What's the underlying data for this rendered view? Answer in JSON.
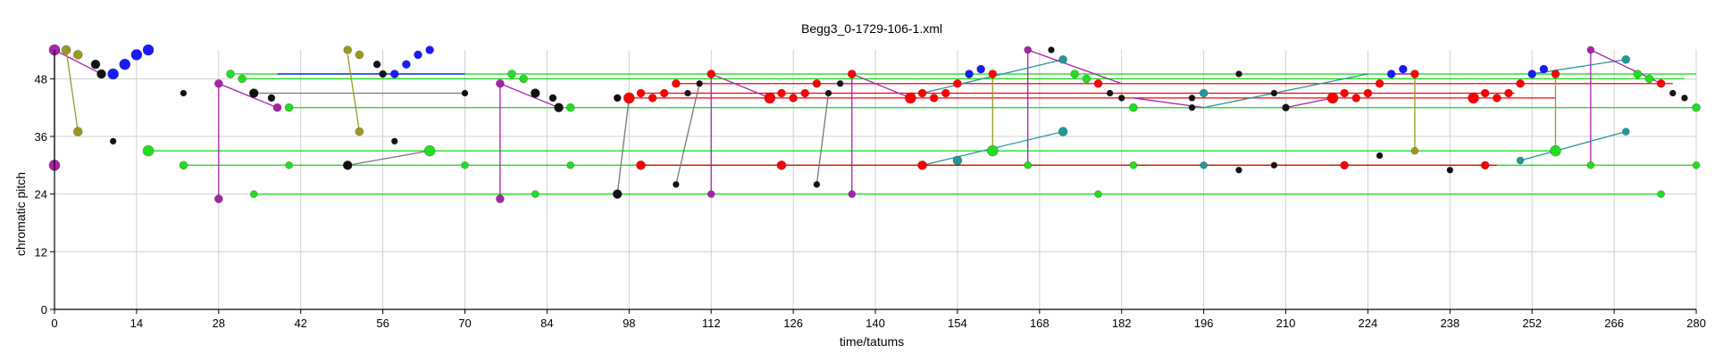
{
  "chart_data": {
    "type": "scatter",
    "title": "Begg3_0-1729-106-1.xml",
    "xlabel": "time/tatums",
    "ylabel": "chromatic pitch",
    "xlim": [
      0,
      280
    ],
    "ylim": [
      0,
      54
    ],
    "xticks": [
      0,
      14,
      28,
      42,
      56,
      70,
      84,
      98,
      112,
      126,
      140,
      154,
      168,
      182,
      196,
      210,
      224,
      238,
      252,
      266,
      280
    ],
    "yticks": [
      0,
      12,
      24,
      36,
      48
    ],
    "grid": true,
    "colors": {
      "green": "#22dd22",
      "red": "#ff0000",
      "blue": "#1a1aff",
      "purple": "#aa22aa",
      "olive": "#999922",
      "teal": "#229999",
      "black": "#111111",
      "gray": "#777777"
    },
    "lines": [
      {
        "color": "green",
        "x": [
          30,
          280
        ],
        "y": [
          49,
          49
        ]
      },
      {
        "color": "green",
        "x": [
          32,
          278
        ],
        "y": [
          48,
          48
        ]
      },
      {
        "color": "green",
        "x": [
          40,
          280
        ],
        "y": [
          42,
          42
        ]
      },
      {
        "color": "green",
        "x": [
          16,
          256
        ],
        "y": [
          33,
          33
        ]
      },
      {
        "color": "green",
        "x": [
          22,
          280
        ],
        "y": [
          30,
          30
        ]
      },
      {
        "color": "green",
        "x": [
          34,
          274
        ],
        "y": [
          24,
          24
        ]
      },
      {
        "color": "red",
        "x": [
          106,
          276
        ],
        "y": [
          47,
          47
        ]
      },
      {
        "color": "red",
        "x": [
          98,
          256
        ],
        "y": [
          44,
          44
        ]
      },
      {
        "color": "red",
        "x": [
          100,
          249
        ],
        "y": [
          45,
          45
        ]
      },
      {
        "color": "red",
        "x": [
          100,
          246
        ],
        "y": [
          30,
          30
        ]
      },
      {
        "color": "gray",
        "x": [
          34,
          70
        ],
        "y": [
          45,
          45
        ]
      },
      {
        "color": "gray",
        "x": [
          50,
          64
        ],
        "y": [
          30,
          33
        ]
      },
      {
        "color": "blue",
        "x": [
          38,
          70
        ],
        "y": [
          49,
          49
        ]
      },
      {
        "color": "purple",
        "x": [
          0,
          0
        ],
        "y": [
          30,
          54
        ]
      },
      {
        "color": "purple",
        "x": [
          28,
          28
        ],
        "y": [
          23,
          47
        ]
      },
      {
        "color": "purple",
        "x": [
          76,
          76
        ],
        "y": [
          23,
          47
        ]
      },
      {
        "color": "purple",
        "x": [
          112,
          112
        ],
        "y": [
          24,
          49
        ]
      },
      {
        "color": "purple",
        "x": [
          136,
          136
        ],
        "y": [
          24,
          49
        ]
      },
      {
        "color": "purple",
        "x": [
          166,
          166
        ],
        "y": [
          30,
          54
        ]
      },
      {
        "color": "purple",
        "x": [
          262,
          262
        ],
        "y": [
          30,
          54
        ]
      },
      {
        "color": "purple",
        "x": [
          28,
          38
        ],
        "y": [
          47,
          42
        ]
      },
      {
        "color": "purple",
        "x": [
          76,
          86
        ],
        "y": [
          47,
          42
        ]
      },
      {
        "color": "purple",
        "x": [
          0,
          8
        ],
        "y": [
          54,
          49
        ]
      },
      {
        "color": "olive",
        "x": [
          2,
          4
        ],
        "y": [
          54,
          37
        ]
      },
      {
        "color": "olive",
        "x": [
          50,
          52
        ],
        "y": [
          53,
          37
        ]
      },
      {
        "color": "olive",
        "x": [
          160,
          160
        ],
        "y": [
          33,
          49
        ]
      },
      {
        "color": "olive",
        "x": [
          232,
          232
        ],
        "y": [
          33,
          49
        ]
      },
      {
        "color": "olive",
        "x": [
          256,
          256
        ],
        "y": [
          33,
          49
        ]
      },
      {
        "color": "gray",
        "x": [
          96,
          98
        ],
        "y": [
          24,
          44
        ]
      },
      {
        "color": "gray",
        "x": [
          106,
          110
        ],
        "y": [
          26,
          47
        ]
      },
      {
        "color": "gray",
        "x": [
          130,
          132
        ],
        "y": [
          26,
          45
        ]
      },
      {
        "color": "teal",
        "x": [
          148,
          172
        ],
        "y": [
          30,
          37
        ]
      },
      {
        "color": "teal",
        "x": [
          148,
          172
        ],
        "y": [
          45,
          52
        ]
      },
      {
        "color": "teal",
        "x": [
          196,
          224
        ],
        "y": [
          42,
          49
        ]
      },
      {
        "color": "teal",
        "x": [
          250,
          268
        ],
        "y": [
          31,
          37
        ]
      },
      {
        "color": "teal",
        "x": [
          252,
          268
        ],
        "y": [
          49,
          52
        ]
      },
      {
        "color": "purple",
        "x": [
          112,
          122
        ],
        "y": [
          49,
          44
        ]
      },
      {
        "color": "purple",
        "x": [
          136,
          146
        ],
        "y": [
          49,
          44
        ]
      },
      {
        "color": "purple",
        "x": [
          166,
          182
        ],
        "y": [
          54,
          47
        ]
      },
      {
        "color": "purple",
        "x": [
          262,
          274
        ],
        "y": [
          54,
          47
        ]
      },
      {
        "color": "purple",
        "x": [
          184,
          196
        ],
        "y": [
          44,
          42
        ]
      },
      {
        "color": "purple",
        "x": [
          210,
          218
        ],
        "y": [
          42,
          44
        ]
      },
      {
        "color": "purple",
        "x": [
          228,
          232
        ],
        "y": [
          49,
          49
        ]
      }
    ],
    "points": [
      {
        "c": "purple",
        "x": 0,
        "y": 54,
        "r": 6
      },
      {
        "c": "olive",
        "x": 2,
        "y": 54,
        "r": 5
      },
      {
        "c": "olive",
        "x": 4,
        "y": 53,
        "r": 5
      },
      {
        "c": "olive",
        "x": 4,
        "y": 37,
        "r": 5
      },
      {
        "c": "purple",
        "x": 0,
        "y": 30,
        "r": 6
      },
      {
        "c": "black",
        "x": 7,
        "y": 51,
        "r": 5
      },
      {
        "c": "black",
        "x": 8,
        "y": 49,
        "r": 5
      },
      {
        "c": "blue",
        "x": 10,
        "y": 49,
        "r": 6
      },
      {
        "c": "blue",
        "x": 12,
        "y": 51,
        "r": 6
      },
      {
        "c": "blue",
        "x": 14,
        "y": 53,
        "r": 6
      },
      {
        "c": "blue",
        "x": 16,
        "y": 54,
        "r": 6
      },
      {
        "c": "black",
        "x": 10,
        "y": 35,
        "r": 3.5
      },
      {
        "c": "black",
        "x": 22,
        "y": 45,
        "r": 3.5
      },
      {
        "c": "green",
        "x": 16,
        "y": 33,
        "r": 6
      },
      {
        "c": "green",
        "x": 22,
        "y": 30,
        "r": 4.5
      },
      {
        "c": "purple",
        "x": 28,
        "y": 47,
        "r": 4.5
      },
      {
        "c": "purple",
        "x": 28,
        "y": 23,
        "r": 4.5
      },
      {
        "c": "green",
        "x": 30,
        "y": 49,
        "r": 4.5
      },
      {
        "c": "green",
        "x": 32,
        "y": 48,
        "r": 4.5
      },
      {
        "c": "black",
        "x": 34,
        "y": 45,
        "r": 5
      },
      {
        "c": "green",
        "x": 34,
        "y": 24,
        "r": 4
      },
      {
        "c": "black",
        "x": 37,
        "y": 44,
        "r": 4
      },
      {
        "c": "purple",
        "x": 38,
        "y": 42,
        "r": 4.5
      },
      {
        "c": "green",
        "x": 40,
        "y": 42,
        "r": 4.5
      },
      {
        "c": "green",
        "x": 40,
        "y": 30,
        "r": 4
      },
      {
        "c": "olive",
        "x": 50,
        "y": 54,
        "r": 4.5
      },
      {
        "c": "olive",
        "x": 52,
        "y": 53,
        "r": 4.5
      },
      {
        "c": "olive",
        "x": 52,
        "y": 37,
        "r": 4.5
      },
      {
        "c": "black",
        "x": 50,
        "y": 30,
        "r": 5
      },
      {
        "c": "black",
        "x": 55,
        "y": 51,
        "r": 4
      },
      {
        "c": "black",
        "x": 56,
        "y": 49,
        "r": 4
      },
      {
        "c": "blue",
        "x": 58,
        "y": 49,
        "r": 4.5
      },
      {
        "c": "blue",
        "x": 60,
        "y": 51,
        "r": 4.5
      },
      {
        "c": "blue",
        "x": 62,
        "y": 53,
        "r": 4.5
      },
      {
        "c": "blue",
        "x": 64,
        "y": 54,
        "r": 4.5
      },
      {
        "c": "black",
        "x": 58,
        "y": 35,
        "r": 3.5
      },
      {
        "c": "green",
        "x": 64,
        "y": 33,
        "r": 6
      },
      {
        "c": "black",
        "x": 70,
        "y": 45,
        "r": 3.5
      },
      {
        "c": "green",
        "x": 70,
        "y": 30,
        "r": 4
      },
      {
        "c": "purple",
        "x": 76,
        "y": 47,
        "r": 4.5
      },
      {
        "c": "purple",
        "x": 76,
        "y": 23,
        "r": 4.5
      },
      {
        "c": "green",
        "x": 78,
        "y": 49,
        "r": 4.5
      },
      {
        "c": "green",
        "x": 80,
        "y": 48,
        "r": 4.5
      },
      {
        "c": "black",
        "x": 82,
        "y": 45,
        "r": 5
      },
      {
        "c": "green",
        "x": 82,
        "y": 24,
        "r": 4
      },
      {
        "c": "black",
        "x": 85,
        "y": 44,
        "r": 4
      },
      {
        "c": "black",
        "x": 86,
        "y": 42,
        "r": 5
      },
      {
        "c": "green",
        "x": 88,
        "y": 42,
        "r": 4.5
      },
      {
        "c": "green",
        "x": 88,
        "y": 30,
        "r": 4
      },
      {
        "c": "black",
        "x": 96,
        "y": 44,
        "r": 4
      },
      {
        "c": "black",
        "x": 96,
        "y": 24,
        "r": 5
      },
      {
        "c": "red",
        "x": 98,
        "y": 44,
        "r": 6
      },
      {
        "c": "red",
        "x": 100,
        "y": 45,
        "r": 4.5
      },
      {
        "c": "red",
        "x": 100,
        "y": 30,
        "r": 5
      },
      {
        "c": "red",
        "x": 102,
        "y": 44,
        "r": 4.5
      },
      {
        "c": "red",
        "x": 104,
        "y": 45,
        "r": 4.5
      },
      {
        "c": "red",
        "x": 106,
        "y": 47,
        "r": 4.5
      },
      {
        "c": "black",
        "x": 106,
        "y": 26,
        "r": 3.5
      },
      {
        "c": "black",
        "x": 108,
        "y": 45,
        "r": 3.5
      },
      {
        "c": "black",
        "x": 110,
        "y": 47,
        "r": 3.5
      },
      {
        "c": "red",
        "x": 112,
        "y": 49,
        "r": 4.5
      },
      {
        "c": "purple",
        "x": 112,
        "y": 24,
        "r": 4
      },
      {
        "c": "red",
        "x": 122,
        "y": 44,
        "r": 6
      },
      {
        "c": "red",
        "x": 124,
        "y": 45,
        "r": 4.5
      },
      {
        "c": "red",
        "x": 124,
        "y": 30,
        "r": 5
      },
      {
        "c": "red",
        "x": 126,
        "y": 44,
        "r": 4.5
      },
      {
        "c": "red",
        "x": 128,
        "y": 45,
        "r": 4.5
      },
      {
        "c": "red",
        "x": 130,
        "y": 47,
        "r": 4.5
      },
      {
        "c": "black",
        "x": 130,
        "y": 26,
        "r": 3.5
      },
      {
        "c": "black",
        "x": 132,
        "y": 45,
        "r": 3.5
      },
      {
        "c": "black",
        "x": 134,
        "y": 47,
        "r": 3.5
      },
      {
        "c": "red",
        "x": 136,
        "y": 49,
        "r": 4.5
      },
      {
        "c": "purple",
        "x": 136,
        "y": 24,
        "r": 4
      },
      {
        "c": "red",
        "x": 146,
        "y": 44,
        "r": 6
      },
      {
        "c": "red",
        "x": 148,
        "y": 45,
        "r": 4.5
      },
      {
        "c": "red",
        "x": 148,
        "y": 30,
        "r": 5
      },
      {
        "c": "red",
        "x": 150,
        "y": 44,
        "r": 4.5
      },
      {
        "c": "red",
        "x": 152,
        "y": 45,
        "r": 4.5
      },
      {
        "c": "red",
        "x": 154,
        "y": 47,
        "r": 4.5
      },
      {
        "c": "teal",
        "x": 154,
        "y": 31,
        "r": 5
      },
      {
        "c": "blue",
        "x": 156,
        "y": 49,
        "r": 4.5
      },
      {
        "c": "blue",
        "x": 158,
        "y": 50,
        "r": 4.5
      },
      {
        "c": "red",
        "x": 160,
        "y": 49,
        "r": 4.5
      },
      {
        "c": "green",
        "x": 160,
        "y": 33,
        "r": 6
      },
      {
        "c": "purple",
        "x": 166,
        "y": 54,
        "r": 4
      },
      {
        "c": "green",
        "x": 166,
        "y": 30,
        "r": 4
      },
      {
        "c": "black",
        "x": 170,
        "y": 54,
        "r": 3.5
      },
      {
        "c": "teal",
        "x": 172,
        "y": 52,
        "r": 4.5
      },
      {
        "c": "teal",
        "x": 172,
        "y": 37,
        "r": 5
      },
      {
        "c": "green",
        "x": 174,
        "y": 49,
        "r": 4.5
      },
      {
        "c": "green",
        "x": 176,
        "y": 48,
        "r": 4.5
      },
      {
        "c": "red",
        "x": 178,
        "y": 47,
        "r": 4.5
      },
      {
        "c": "green",
        "x": 178,
        "y": 24,
        "r": 4
      },
      {
        "c": "black",
        "x": 180,
        "y": 45,
        "r": 3.5
      },
      {
        "c": "black",
        "x": 182,
        "y": 44,
        "r": 3.5
      },
      {
        "c": "green",
        "x": 184,
        "y": 42,
        "r": 4.5
      },
      {
        "c": "green",
        "x": 184,
        "y": 30,
        "r": 4
      },
      {
        "c": "black",
        "x": 194,
        "y": 44,
        "r": 3.5
      },
      {
        "c": "black",
        "x": 194,
        "y": 42,
        "r": 3.5
      },
      {
        "c": "teal",
        "x": 196,
        "y": 45,
        "r": 4.5
      },
      {
        "c": "teal",
        "x": 196,
        "y": 30,
        "r": 4
      },
      {
        "c": "black",
        "x": 202,
        "y": 49,
        "r": 3.5
      },
      {
        "c": "black",
        "x": 202,
        "y": 29,
        "r": 3.5
      },
      {
        "c": "black",
        "x": 208,
        "y": 45,
        "r": 3.5
      },
      {
        "c": "black",
        "x": 208,
        "y": 30,
        "r": 3.5
      },
      {
        "c": "black",
        "x": 210,
        "y": 42,
        "r": 4
      },
      {
        "c": "red",
        "x": 218,
        "y": 44,
        "r": 6
      },
      {
        "c": "red",
        "x": 220,
        "y": 45,
        "r": 4.5
      },
      {
        "c": "red",
        "x": 220,
        "y": 30,
        "r": 4.5
      },
      {
        "c": "red",
        "x": 222,
        "y": 44,
        "r": 4.5
      },
      {
        "c": "red",
        "x": 224,
        "y": 45,
        "r": 4.5
      },
      {
        "c": "red",
        "x": 226,
        "y": 47,
        "r": 4.5
      },
      {
        "c": "black",
        "x": 226,
        "y": 32,
        "r": 3.5
      },
      {
        "c": "blue",
        "x": 228,
        "y": 49,
        "r": 4.5
      },
      {
        "c": "blue",
        "x": 230,
        "y": 50,
        "r": 4.5
      },
      {
        "c": "red",
        "x": 232,
        "y": 49,
        "r": 4.5
      },
      {
        "c": "olive",
        "x": 232,
        "y": 33,
        "r": 4
      },
      {
        "c": "black",
        "x": 238,
        "y": 29,
        "r": 3.5
      },
      {
        "c": "red",
        "x": 242,
        "y": 44,
        "r": 6
      },
      {
        "c": "red",
        "x": 244,
        "y": 45,
        "r": 4.5
      },
      {
        "c": "red",
        "x": 244,
        "y": 30,
        "r": 4.5
      },
      {
        "c": "red",
        "x": 246,
        "y": 44,
        "r": 4.5
      },
      {
        "c": "red",
        "x": 248,
        "y": 45,
        "r": 4.5
      },
      {
        "c": "red",
        "x": 250,
        "y": 47,
        "r": 4.5
      },
      {
        "c": "teal",
        "x": 250,
        "y": 31,
        "r": 4
      },
      {
        "c": "blue",
        "x": 252,
        "y": 49,
        "r": 4.5
      },
      {
        "c": "blue",
        "x": 254,
        "y": 50,
        "r": 4.5
      },
      {
        "c": "red",
        "x": 256,
        "y": 49,
        "r": 4.5
      },
      {
        "c": "green",
        "x": 256,
        "y": 33,
        "r": 6
      },
      {
        "c": "purple",
        "x": 262,
        "y": 54,
        "r": 4
      },
      {
        "c": "green",
        "x": 262,
        "y": 30,
        "r": 4
      },
      {
        "c": "teal",
        "x": 268,
        "y": 52,
        "r": 4.5
      },
      {
        "c": "teal",
        "x": 268,
        "y": 37,
        "r": 4
      },
      {
        "c": "green",
        "x": 270,
        "y": 49,
        "r": 4.5
      },
      {
        "c": "green",
        "x": 272,
        "y": 48,
        "r": 4.5
      },
      {
        "c": "red",
        "x": 274,
        "y": 47,
        "r": 4.5
      },
      {
        "c": "green",
        "x": 274,
        "y": 24,
        "r": 4
      },
      {
        "c": "black",
        "x": 276,
        "y": 45,
        "r": 3.5
      },
      {
        "c": "black",
        "x": 278,
        "y": 44,
        "r": 3.5
      },
      {
        "c": "green",
        "x": 280,
        "y": 42,
        "r": 4.5
      },
      {
        "c": "green",
        "x": 280,
        "y": 30,
        "r": 4
      }
    ]
  }
}
